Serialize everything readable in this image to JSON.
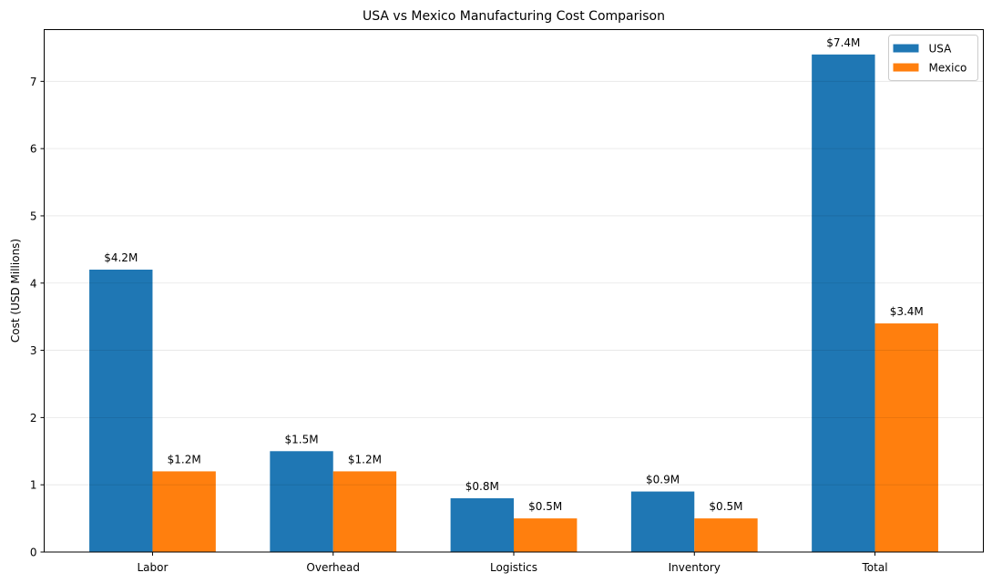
{
  "chart_data": {
    "type": "bar",
    "title": "USA vs Mexico Manufacturing Cost Comparison",
    "xlabel": "",
    "ylabel": "Cost (USD Millions)",
    "categories": [
      "Labor",
      "Overhead",
      "Logistics",
      "Inventory",
      "Total"
    ],
    "series": [
      {
        "name": "USA",
        "color": "#1f77b4",
        "values": [
          4.2,
          1.5,
          0.8,
          0.9,
          7.4
        ],
        "labels": [
          "$4.2M",
          "$1.5M",
          "$0.8M",
          "$0.9M",
          "$7.4M"
        ]
      },
      {
        "name": "Mexico",
        "color": "#ff7f0e",
        "values": [
          1.2,
          1.2,
          0.5,
          0.5,
          3.4
        ],
        "labels": [
          "$1.2M",
          "$1.2M",
          "$0.5M",
          "$0.5M",
          "$3.4M"
        ]
      }
    ],
    "ylim": [
      0,
      7.77
    ],
    "yticks": [
      0,
      1,
      2,
      3,
      4,
      5,
      6,
      7
    ],
    "grid": "y",
    "legend": "top-right"
  }
}
